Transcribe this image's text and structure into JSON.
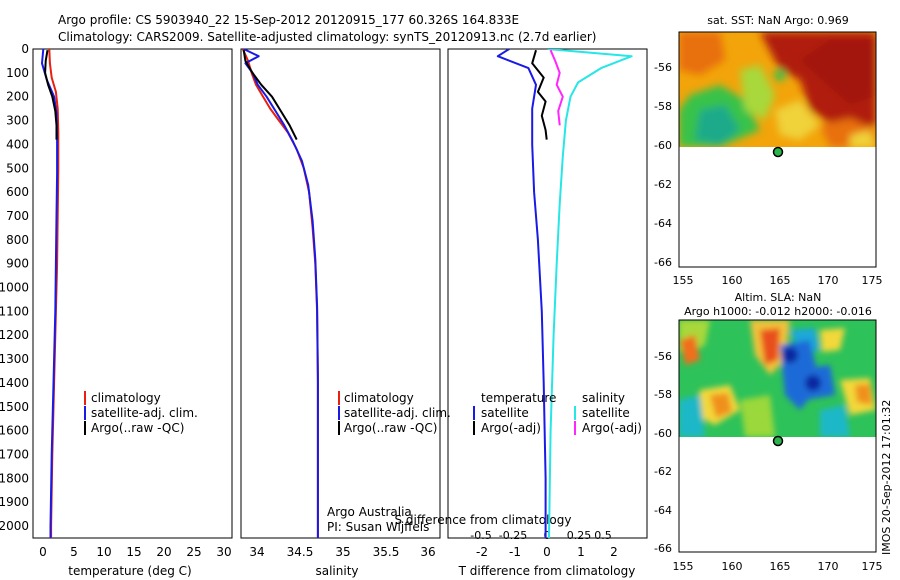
{
  "title": {
    "line1": "Argo profile: CS 5903940_22 15-Sep-2012 20120915_177 60.326S 164.833E",
    "line2": "Climatology: CARS2009. Satellite-adjusted climatology: synTS_20120913.nc (2.7d earlier)"
  },
  "depth_ticks": [
    "0",
    "100",
    "200",
    "300",
    "400",
    "500",
    "600",
    "700",
    "800",
    "900",
    "1000",
    "1100",
    "1200",
    "1300",
    "1400",
    "1500",
    "1600",
    "1700",
    "1800",
    "1900",
    "2000"
  ],
  "colors": {
    "climatology": "#e8200f",
    "satellite": "#1a1ae6",
    "argo": "#000000",
    "cyan": "#26e6e6",
    "magenta": "#ff26ff"
  },
  "panels": {
    "temperature": {
      "xlabel": "temperature (deg C)",
      "xticks": [
        "0",
        "5",
        "10",
        "15",
        "20",
        "25",
        "30"
      ],
      "legend": [
        "climatology",
        "satellite-adj. clim.",
        "Argo(..raw -QC)"
      ]
    },
    "salinity": {
      "xlabel": "salinity",
      "xticks": [
        "34",
        "34.5",
        "35",
        "35.5",
        "36"
      ],
      "legend": [
        "climatology",
        "satellite-adj. clim.",
        "Argo(..raw -QC)"
      ],
      "credit1": "Argo Australia",
      "credit2": "PI: Susan Wijffels"
    },
    "difference": {
      "xlabel": "T difference from climatology",
      "xlabel_top": "S difference from climatology",
      "xticks_t": [
        "-2",
        "-1",
        "0",
        "1",
        "2"
      ],
      "xticks_s": [
        "-0.5",
        "-0.25",
        "0",
        "0.25",
        "0.5"
      ],
      "legend_t_title": "temperature",
      "legend_s_title": "salinity",
      "legend_t": [
        "satellite",
        "Argo(-adj)"
      ],
      "legend_s": [
        "satellite",
        "Argo(-adj)"
      ]
    },
    "sst_map": {
      "title": "sat. SST: NaN Argo: 0.969",
      "yticks": [
        "-56",
        "-58",
        "-60",
        "-62",
        "-64",
        "-66"
      ],
      "xticks": [
        "155",
        "160",
        "165",
        "170",
        "175"
      ]
    },
    "sla_map": {
      "title1": "Altim. SLA: NaN",
      "title2": "Argo h1000: -0.012 h2000: -0.016",
      "yticks": [
        "-56",
        "-58",
        "-60",
        "-62",
        "-64",
        "-66"
      ],
      "xticks": [
        "155",
        "160",
        "165",
        "170",
        "175"
      ]
    },
    "watermark": "IMOS 20-Sep-2012 17:01:32"
  },
  "chart_data": [
    {
      "type": "line",
      "title": "",
      "xlabel": "temperature (deg C)",
      "ylabel": "",
      "xlim": [
        -1.5,
        31.5
      ],
      "ylim": [
        0,
        2050
      ],
      "y_reversed": true,
      "series": [
        {
          "name": "climatology",
          "color": "#e8200f",
          "x": [
            1.2,
            1.3,
            1.6,
            2.3,
            2.6,
            2.7,
            2.7,
            2.6,
            2.5,
            2.3,
            2.1,
            1.9,
            1.7,
            1.6,
            1.5,
            1.5
          ],
          "y": [
            0,
            60,
            120,
            180,
            250,
            350,
            500,
            700,
            900,
            1100,
            1300,
            1500,
            1700,
            1850,
            2000,
            2050
          ]
        },
        {
          "name": "satellite-adj. clim.",
          "color": "#1a1ae6",
          "x": [
            0.2,
            0.0,
            0.8,
            2.0,
            2.4,
            2.5,
            2.5,
            2.4,
            2.3,
            2.2,
            2.0,
            1.8,
            1.6,
            1.5,
            1.4,
            1.4
          ],
          "y": [
            0,
            60,
            130,
            200,
            270,
            380,
            520,
            700,
            900,
            1100,
            1300,
            1500,
            1700,
            1850,
            2000,
            2050
          ]
        },
        {
          "name": "Argo(..raw -QC)",
          "color": "#000000",
          "x": [
            0.9,
            0.6,
            0.5,
            1.0,
            1.7,
            2.2,
            2.4,
            2.4
          ],
          "y": [
            5,
            50,
            100,
            150,
            200,
            260,
            320,
            380
          ]
        }
      ]
    },
    {
      "type": "line",
      "title": "",
      "xlabel": "salinity",
      "ylabel": "",
      "xlim": [
        33.85,
        36.1
      ],
      "ylim": [
        0,
        2050
      ],
      "y_reversed": true,
      "series": [
        {
          "name": "climatology",
          "color": "#e8200f",
          "x": [
            33.87,
            33.93,
            33.97,
            34.02,
            34.1,
            34.18,
            34.28,
            34.38,
            34.48,
            34.56,
            34.62,
            34.66,
            34.69,
            34.71,
            34.72,
            34.72,
            34.72
          ],
          "y": [
            0,
            50,
            100,
            150,
            200,
            250,
            300,
            350,
            420,
            500,
            600,
            750,
            900,
            1100,
            1400,
            1800,
            2050
          ]
        },
        {
          "name": "satellite-adj. clim.",
          "color": "#1a1ae6",
          "x": [
            33.88,
            34.05,
            33.9,
            33.98,
            34.04,
            34.14,
            34.24,
            34.34,
            34.44,
            34.54,
            34.61,
            34.66,
            34.69,
            34.71,
            34.72,
            34.72,
            34.72
          ],
          "y": [
            0,
            30,
            60,
            100,
            150,
            200,
            260,
            320,
            390,
            470,
            570,
            720,
            880,
            1080,
            1380,
            1800,
            2050
          ]
        },
        {
          "name": "Argo(..raw -QC)",
          "color": "#000000",
          "x": [
            33.88,
            33.9,
            33.98,
            34.08,
            34.2,
            34.3,
            34.4,
            34.48
          ],
          "y": [
            5,
            50,
            100,
            150,
            200,
            260,
            320,
            380
          ]
        }
      ]
    },
    {
      "type": "line",
      "title": "",
      "xlabel": "T difference from climatology",
      "xlabel_top": "S difference from climatology",
      "ylabel": "",
      "xlim": [
        -2.6,
        2.6
      ],
      "xlim_salinity": [
        -0.65,
        0.65
      ],
      "ylim": [
        0,
        2050
      ],
      "y_reversed": true,
      "series": [
        {
          "name": "temperature satellite",
          "color": "#1a1ae6",
          "x": [
            -1.0,
            -1.3,
            -0.5,
            -0.3,
            -0.4,
            -0.4,
            -0.35,
            -0.25,
            -0.15,
            -0.1,
            -0.05,
            -0.05
          ],
          "y": [
            0,
            30,
            80,
            150,
            250,
            400,
            600,
            800,
            1100,
            1400,
            1800,
            2050
          ]
        },
        {
          "name": "temperature Argo(-adj)",
          "color": "#000000",
          "x": [
            -0.3,
            -0.4,
            -0.1,
            -0.25,
            -0.05,
            -0.15,
            -0.05,
            -0.02
          ],
          "y": [
            5,
            60,
            120,
            180,
            220,
            280,
            340,
            380
          ]
        },
        {
          "name": "salinity satellite",
          "color": "#26e6e6",
          "x": [
            0.0,
            0.55,
            0.35,
            0.2,
            0.15,
            0.12,
            0.1,
            0.08,
            0.06,
            0.04,
            0.02,
            0.01
          ],
          "y": [
            0,
            30,
            80,
            140,
            200,
            300,
            450,
            650,
            900,
            1200,
            1600,
            2050
          ]
        },
        {
          "name": "salinity Argo(-adj)",
          "color": "#ff26ff",
          "x": [
            0.02,
            0.05,
            0.08,
            0.06,
            0.1,
            0.07,
            0.08
          ],
          "y": [
            5,
            50,
            100,
            150,
            200,
            260,
            320
          ]
        }
      ]
    },
    {
      "type": "heatmap",
      "title": "sat. SST: NaN Argo: 0.969",
      "xlim": [
        155,
        175
      ],
      "ylim": [
        -66.5,
        -54.5
      ],
      "data_extent_lat": [
        -60.2,
        -54.5
      ],
      "argo_position": {
        "lon": 164.833,
        "lat": -60.326
      }
    },
    {
      "type": "heatmap",
      "title": "Altim. SLA: NaN",
      "subtitle": "Argo h1000: -0.012 h2000: -0.016",
      "xlim": [
        155,
        175
      ],
      "ylim": [
        -66.5,
        -54.5
      ],
      "data_extent_lat": [
        -60.2,
        -54.5
      ],
      "argo_position": {
        "lon": 164.833,
        "lat": -60.326
      }
    }
  ]
}
